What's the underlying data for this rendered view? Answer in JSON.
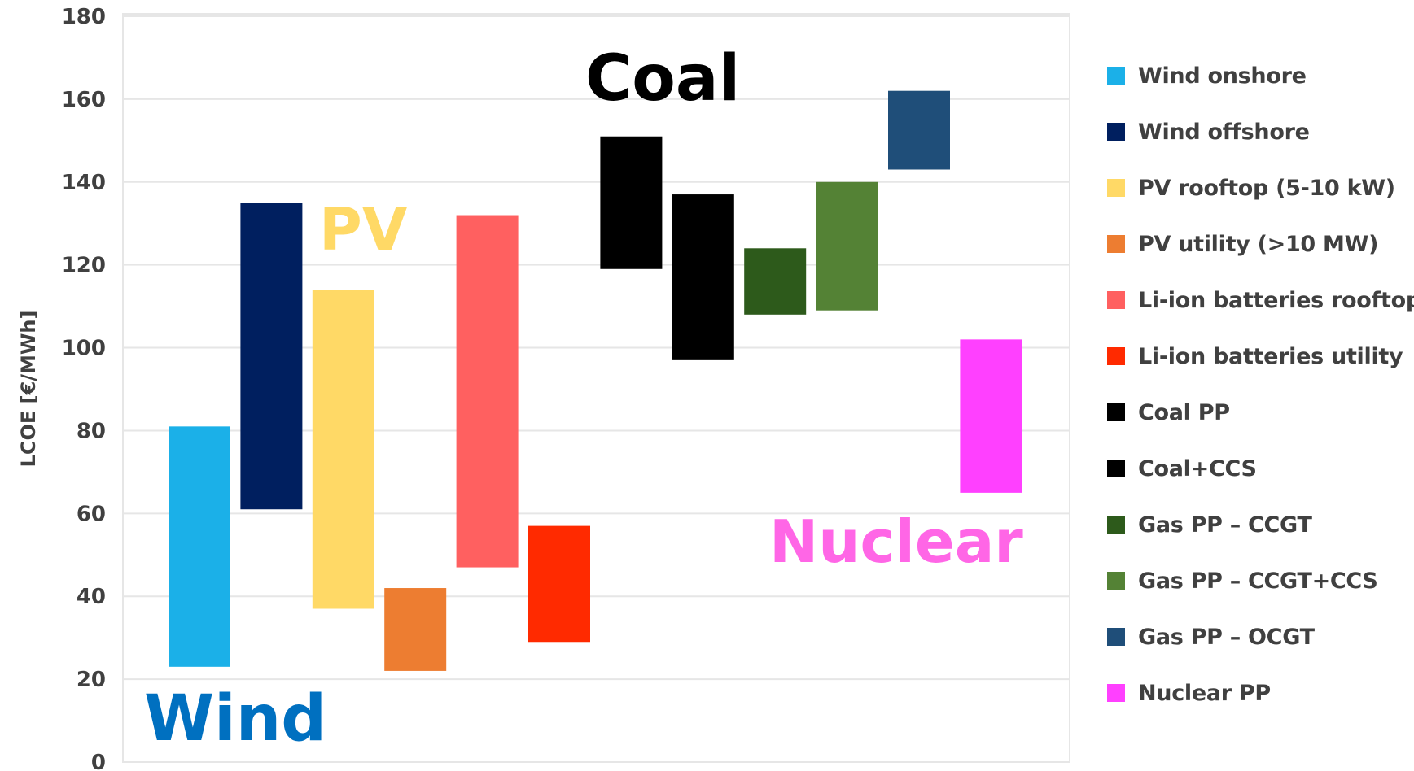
{
  "chart_data": {
    "type": "bar",
    "subtype": "floating-range",
    "ylabel": "LCOE [€/MWh]",
    "ylim": [
      0,
      180
    ],
    "yticks": [
      0,
      20,
      40,
      60,
      80,
      100,
      120,
      140,
      160,
      180
    ],
    "grid": true,
    "legend_position": "right",
    "series": [
      {
        "name": "Wind onshore",
        "color": "#1BB0E8",
        "low": 23,
        "high": 81
      },
      {
        "name": "Wind offshore",
        "color": "#001F5F",
        "low": 61,
        "high": 135
      },
      {
        "name": "PV rooftop (5-10 kW)",
        "color": "#FFD966",
        "low": 37,
        "high": 114
      },
      {
        "name": "PV utility (>10 MW)",
        "color": "#ED7D31",
        "low": 22,
        "high": 42
      },
      {
        "name": "Li-ion batteries rooftop",
        "color": "#FF6060",
        "low": 47,
        "high": 132
      },
      {
        "name": "Li-ion batteries utility",
        "color": "#FF2A00",
        "low": 29,
        "high": 57
      },
      {
        "name": "Coal PP",
        "color": "#000000",
        "low": 119,
        "high": 151
      },
      {
        "name": "Coal+CCS",
        "color": "#000000",
        "low": 97,
        "high": 137
      },
      {
        "name": "Gas PP – CCGT",
        "color": "#2D5A1B",
        "low": 108,
        "high": 124
      },
      {
        "name": "Gas PP – CCGT+CCS",
        "color": "#548235",
        "low": 109,
        "high": 140
      },
      {
        "name": "Gas PP – OCGT",
        "color": "#1F4E79",
        "low": 143,
        "high": 162
      },
      {
        "name": "Nuclear PP",
        "color": "#FF40FF",
        "low": 65,
        "high": 102
      }
    ],
    "annotations": [
      {
        "text": "Wind",
        "color": "#0070C0"
      },
      {
        "text": "PV",
        "color": "#FFD966"
      },
      {
        "text": "Coal",
        "color": "#000000"
      },
      {
        "text": "Nuclear",
        "color": "#FF66E6"
      }
    ]
  }
}
